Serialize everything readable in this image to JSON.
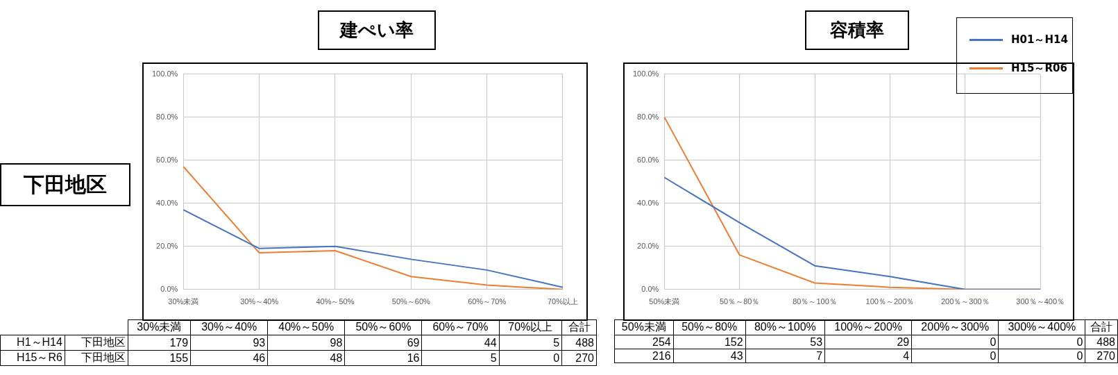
{
  "chart_data": [
    {
      "type": "line",
      "title": "建ぺい率",
      "categories": [
        "30%未満",
        "30%～40%",
        "40%～50%",
        "50%～60%",
        "60%～70%",
        "70%以上"
      ],
      "series": [
        {
          "color": "#4472c4",
          "values": [
            37,
            19,
            20,
            14,
            9,
            1
          ]
        },
        {
          "color": "#ed7d31",
          "values": [
            57,
            17,
            18,
            6,
            2,
            0
          ]
        }
      ],
      "ylim": [
        0,
        100
      ],
      "yticks": [
        {
          "value": 0,
          "label": "0.0%"
        },
        {
          "value": 20,
          "label": "20.0%"
        },
        {
          "value": 40,
          "label": "40.0%"
        },
        {
          "value": 60,
          "label": "60.0%"
        },
        {
          "value": 80,
          "label": "80.0%"
        },
        {
          "value": 100,
          "label": "100.0%"
        }
      ],
      "grid": true,
      "legend": false,
      "marker": "none",
      "annotations": [
        "下田地区"
      ]
    },
    {
      "type": "other",
      "categories": [
        null,
        null,
        "30%未満",
        "30%～40%",
        "40%～50%",
        "50%～60%",
        "60%～70%",
        "70%以上",
        "合計"
      ],
      "annotations": [
        "H1～H14",
        "下田地区",
        "179",
        "93",
        "98",
        "69",
        "44",
        "5",
        "488",
        "H15～R6",
        "下田地区",
        "155",
        "46",
        "48",
        "16",
        "5",
        "0",
        "270"
      ]
    },
    {
      "type": "line",
      "title": "容積率",
      "categories": [
        "50%未満",
        "50％～80％",
        "80％～100％",
        "100％～200％",
        "200％～300％",
        "300％～400％"
      ],
      "series": [
        {
          "name": "H01～H14",
          "color": "#4472c4",
          "values": [
            52,
            31,
            11,
            6,
            0,
            0
          ]
        },
        {
          "name": "H15～R06",
          "color": "#ed7d31",
          "values": [
            80,
            16,
            3,
            1,
            0,
            0
          ]
        }
      ],
      "ylim": [
        0,
        100
      ],
      "yticks": [
        {
          "value": 0,
          "label": "0.0%"
        },
        {
          "value": 20,
          "label": "20.0%"
        },
        {
          "value": 40,
          "label": "40.0%"
        },
        {
          "value": 60,
          "label": "60.0%"
        },
        {
          "value": 80,
          "label": "80.0%"
        },
        {
          "value": 100,
          "label": "100.0%"
        }
      ],
      "grid": true,
      "legend": "top right",
      "marker": "none"
    },
    {
      "type": "other",
      "categories": [
        "50%未満",
        "50%～80%",
        "80%～100%",
        "100%～200%",
        "200%～300%",
        "300%～400%",
        "合計"
      ],
      "annotations": [
        "254",
        "152",
        "53",
        "29",
        "0",
        "0",
        "488",
        "216",
        "43",
        "7",
        "4",
        "0",
        "0",
        "270"
      ]
    }
  ]
}
